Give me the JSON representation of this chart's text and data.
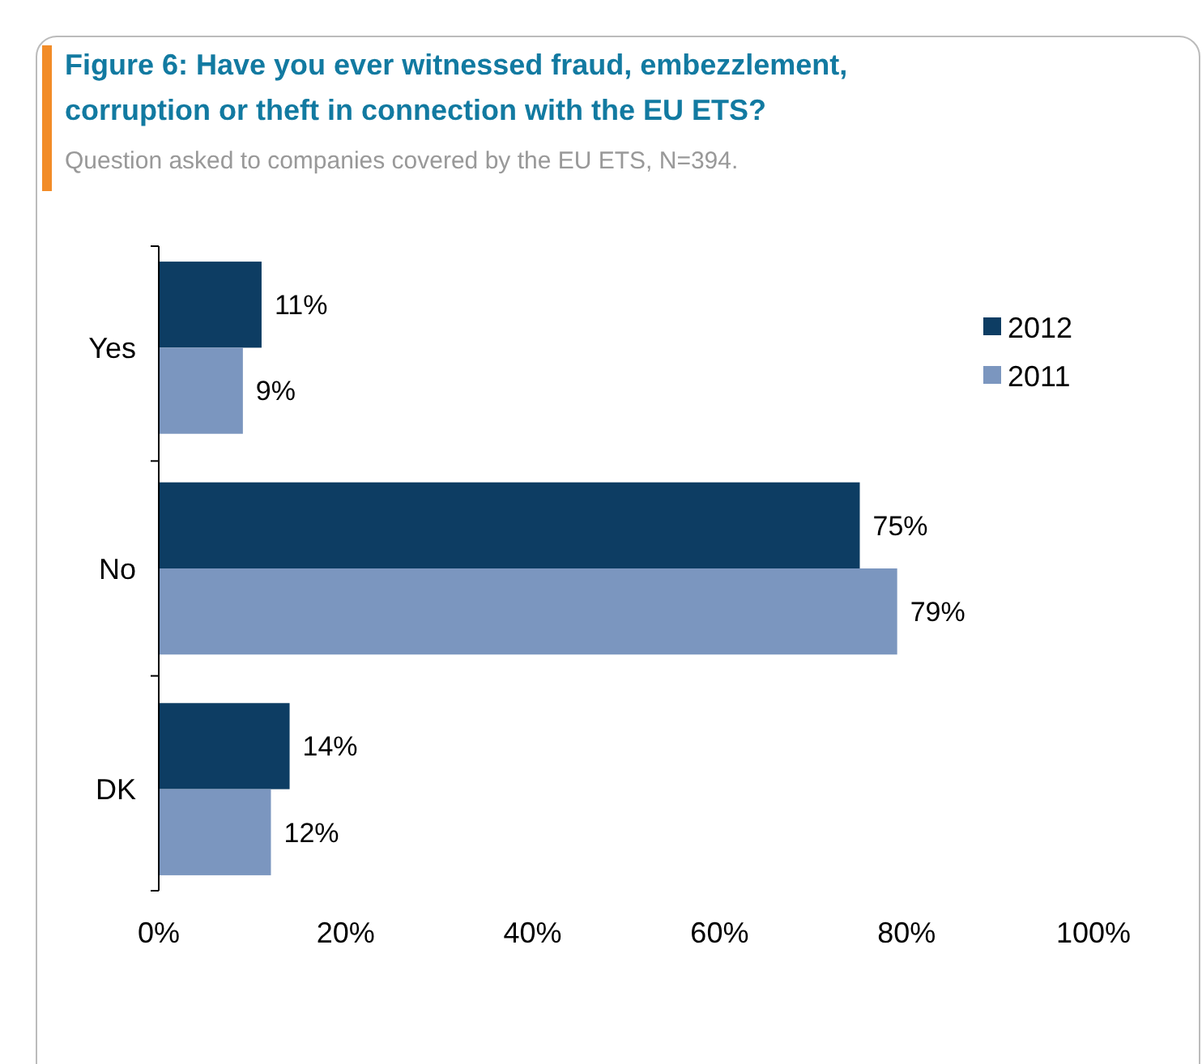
{
  "chart_data": {
    "type": "bar",
    "orientation": "horizontal",
    "title": "Figure 6: Have you ever witnessed fraud, embezzlement, corruption or theft in connection with the EU ETS?",
    "subtitle": "Question asked to companies covered by the EU ETS, N=394.",
    "categories": [
      "Yes",
      "No",
      "DK"
    ],
    "series": [
      {
        "name": "2012",
        "color": "#0d3d63",
        "values": [
          11,
          75,
          14
        ],
        "value_labels": [
          "11%",
          "75%",
          "14%"
        ]
      },
      {
        "name": "2011",
        "color": "#7b96bf",
        "values": [
          9,
          79,
          12
        ],
        "value_labels": [
          "9%",
          "79%",
          "12%"
        ]
      }
    ],
    "xlim": [
      0,
      100
    ],
    "xticks": [
      {
        "value": 0,
        "label": "0%"
      },
      {
        "value": 20,
        "label": "20%"
      },
      {
        "value": 40,
        "label": "40%"
      },
      {
        "value": 60,
        "label": "60%"
      },
      {
        "value": 80,
        "label": "80%"
      },
      {
        "value": 100,
        "label": "100%"
      }
    ],
    "grid": false,
    "legend": "top right"
  }
}
